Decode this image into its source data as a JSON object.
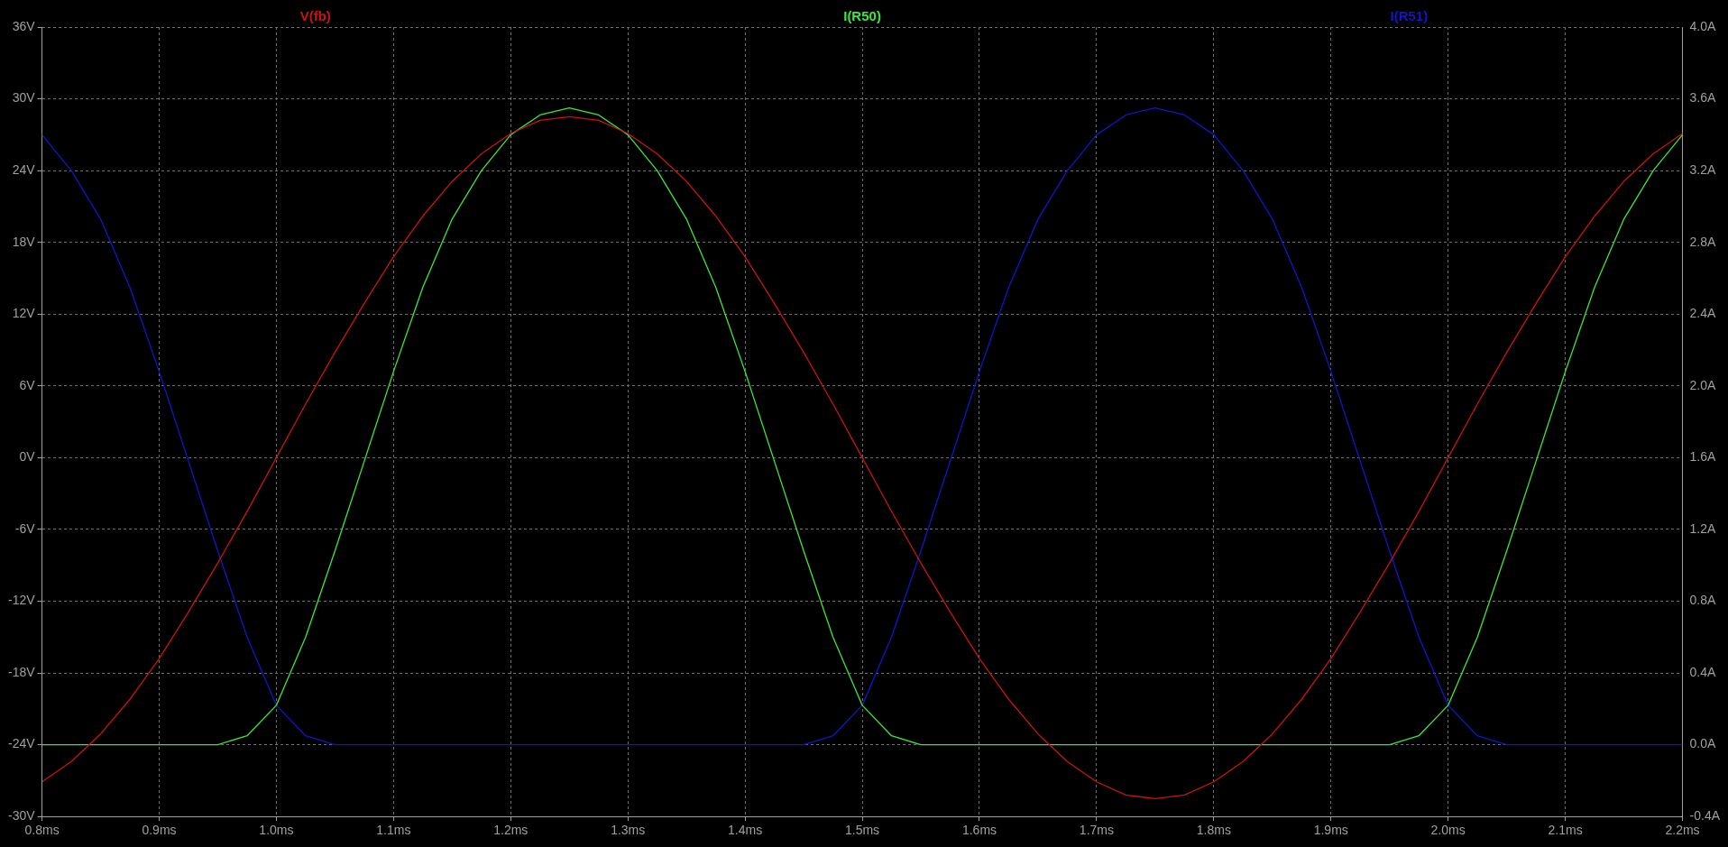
{
  "chart_data": {
    "type": "line",
    "x": [
      0.8,
      0.825,
      0.85,
      0.875,
      0.9,
      0.925,
      0.95,
      0.975,
      1.0,
      1.025,
      1.05,
      1.075,
      1.1,
      1.125,
      1.15,
      1.175,
      1.2,
      1.225,
      1.25,
      1.275,
      1.3,
      1.325,
      1.35,
      1.375,
      1.4,
      1.425,
      1.45,
      1.475,
      1.5,
      1.525,
      1.55,
      1.575,
      1.6,
      1.625,
      1.65,
      1.675,
      1.7,
      1.725,
      1.75,
      1.775,
      1.8,
      1.825,
      1.85,
      1.875,
      1.9,
      1.925,
      1.95,
      1.975,
      2.0,
      2.025,
      2.05,
      2.075,
      2.1,
      2.125,
      2.15,
      2.175,
      2.2
    ],
    "series": [
      {
        "name": "V(fb)",
        "color": "#c81414",
        "values": [
          -27.1,
          -25.4,
          -23.1,
          -20.2,
          -16.8,
          -12.9,
          -8.8,
          -4.5,
          0,
          4.5,
          8.8,
          12.9,
          16.8,
          20.2,
          23.1,
          25.4,
          27.1,
          28.2,
          28.5,
          28.2,
          27.1,
          25.4,
          23.1,
          20.2,
          16.8,
          12.9,
          8.8,
          4.5,
          0,
          -4.5,
          -8.8,
          -12.9,
          -16.8,
          -20.2,
          -23.1,
          -25.4,
          -27.1,
          -28.2,
          -28.5,
          -28.2,
          -27.1,
          -25.4,
          -23.1,
          -20.2,
          -16.8,
          -12.9,
          -8.8,
          -4.5,
          0,
          4.5,
          8.8,
          12.9,
          16.8,
          20.2,
          23.1,
          25.4,
          27.1
        ]
      },
      {
        "name": "I(R50)",
        "color": "#3ce63c",
        "axis": "y2",
        "values": [
          0,
          0,
          0,
          0,
          0,
          0,
          0,
          0.05,
          0.22,
          0.6,
          1.08,
          1.58,
          2.08,
          2.55,
          2.93,
          3.2,
          3.4,
          3.51,
          3.55,
          3.51,
          3.4,
          3.2,
          2.93,
          2.55,
          2.08,
          1.58,
          1.08,
          0.6,
          0.22,
          0.05,
          0,
          0,
          0,
          0,
          0,
          0,
          0,
          0,
          0,
          0,
          0,
          0,
          0,
          0,
          0,
          0,
          0,
          0.05,
          0.22,
          0.6,
          1.08,
          1.58,
          2.08,
          2.55,
          2.93,
          3.2,
          3.4
        ]
      },
      {
        "name": "I(R51)",
        "color": "#1414c8",
        "axis": "y2",
        "values": [
          3.4,
          3.2,
          2.93,
          2.55,
          2.08,
          1.58,
          1.08,
          0.6,
          0.22,
          0.05,
          0,
          0,
          0,
          0,
          0,
          0,
          0,
          0,
          0,
          0,
          0,
          0,
          0,
          0,
          0,
          0,
          0,
          0.05,
          0.22,
          0.6,
          1.08,
          1.58,
          2.08,
          2.55,
          2.93,
          3.2,
          3.4,
          3.51,
          3.55,
          3.51,
          3.4,
          3.2,
          2.93,
          2.55,
          2.08,
          1.58,
          1.08,
          0.6,
          0.22,
          0.05,
          0,
          0,
          0,
          0,
          0,
          0,
          0
        ]
      }
    ],
    "xlim": [
      0.8,
      2.2
    ],
    "xticks": [
      {
        "value": 0.8,
        "label": "0.8ms"
      },
      {
        "value": 0.9,
        "label": "0.9ms"
      },
      {
        "value": 1.0,
        "label": "1.0ms"
      },
      {
        "value": 1.1,
        "label": "1.1ms"
      },
      {
        "value": 1.2,
        "label": "1.2ms"
      },
      {
        "value": 1.3,
        "label": "1.3ms"
      },
      {
        "value": 1.4,
        "label": "1.4ms"
      },
      {
        "value": 1.5,
        "label": "1.5ms"
      },
      {
        "value": 1.6,
        "label": "1.6ms"
      },
      {
        "value": 1.7,
        "label": "1.7ms"
      },
      {
        "value": 1.8,
        "label": "1.8ms"
      },
      {
        "value": 1.9,
        "label": "1.9ms"
      },
      {
        "value": 2.0,
        "label": "2.0ms"
      },
      {
        "value": 2.1,
        "label": "2.1ms"
      },
      {
        "value": 2.2,
        "label": "2.2ms"
      }
    ],
    "ylim": [
      -30,
      36
    ],
    "yticks": [
      {
        "value": -30,
        "label": "-30V"
      },
      {
        "value": -24,
        "label": "-24V"
      },
      {
        "value": -18,
        "label": "-18V"
      },
      {
        "value": -12,
        "label": "-12V"
      },
      {
        "value": -6,
        "label": "-6V"
      },
      {
        "value": 0,
        "label": "0V"
      },
      {
        "value": 6,
        "label": "6V"
      },
      {
        "value": 12,
        "label": "12V"
      },
      {
        "value": 18,
        "label": "18V"
      },
      {
        "value": 24,
        "label": "24V"
      },
      {
        "value": 30,
        "label": "30V"
      },
      {
        "value": 36,
        "label": "36V"
      }
    ],
    "y2lim": [
      -0.4,
      4.0
    ],
    "y2ticks": [
      {
        "value": -0.4,
        "label": "-0.4A"
      },
      {
        "value": 0,
        "label": "0.0A"
      },
      {
        "value": 0.4,
        "label": "0.4A"
      },
      {
        "value": 0.8,
        "label": "0.8A"
      },
      {
        "value": 1.2,
        "label": "1.2A"
      },
      {
        "value": 1.6,
        "label": "1.6A"
      },
      {
        "value": 2.0,
        "label": "2.0A"
      },
      {
        "value": 2.4,
        "label": "2.4A"
      },
      {
        "value": 2.8,
        "label": "2.8A"
      },
      {
        "value": 3.2,
        "label": "3.2A"
      },
      {
        "value": 3.6,
        "label": "3.6A"
      },
      {
        "value": 4.0,
        "label": "4.0A"
      }
    ],
    "grid": true,
    "legend": "top",
    "line_style": "solid",
    "marker": "none"
  }
}
